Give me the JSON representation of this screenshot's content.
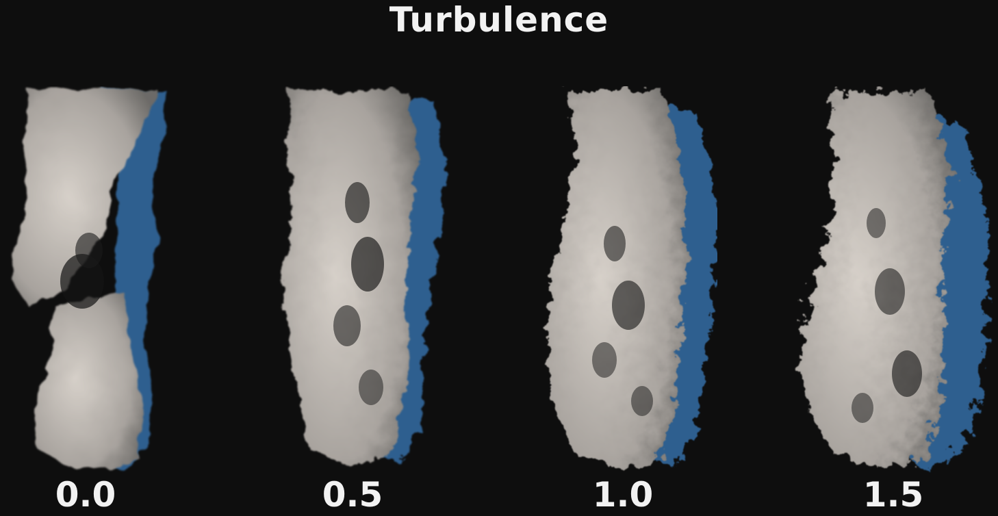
{
  "title": "Turbulence",
  "panels": [
    {
      "label": "0.0",
      "turbulence": 0.0
    },
    {
      "label": "0.5",
      "turbulence": 0.5
    },
    {
      "label": "1.0",
      "turbulence": 1.0
    },
    {
      "label": "1.5",
      "turbulence": 1.5
    }
  ],
  "colors": {
    "background": "#0e0e0e",
    "smoke_light": "#d6d0c9",
    "smoke_shadow": "#2f5f8f",
    "text": "#f2f2f2"
  }
}
